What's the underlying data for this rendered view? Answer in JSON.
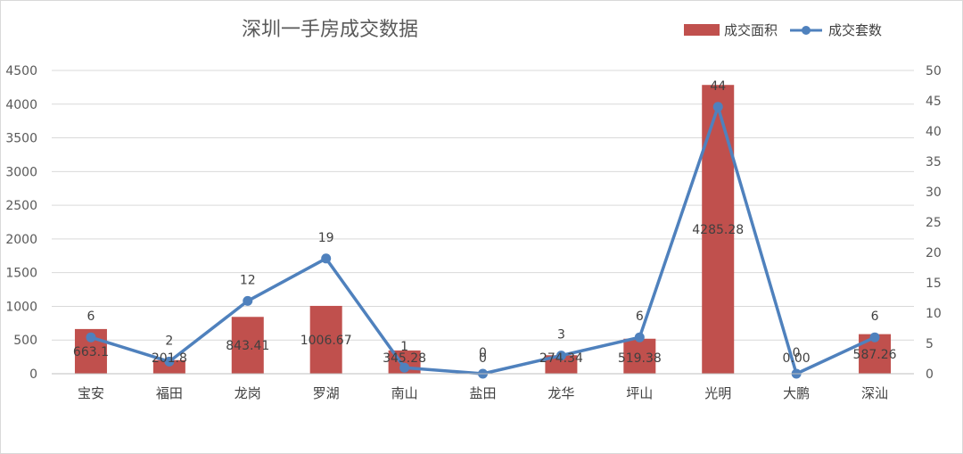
{
  "chart_data": {
    "type": "bar",
    "title": "深圳一手房成交数据",
    "categories": [
      "宝安",
      "福田",
      "龙岗",
      "罗湖",
      "南山",
      "盐田",
      "龙华",
      "坪山",
      "光明",
      "大鹏",
      "深汕"
    ],
    "series": [
      {
        "name": "成交面积",
        "type": "bar",
        "axis": "left",
        "color": "#c0504d",
        "values": [
          663.1,
          201.8,
          843.41,
          1006.67,
          345.28,
          0,
          274.34,
          519.38,
          4285.28,
          0,
          587.26
        ],
        "labels": [
          "663.1",
          "201.8",
          "843.41",
          "1006.67",
          "345.28",
          "0",
          "274.34",
          "519.38",
          "4285.28",
          "0.00",
          "587.26"
        ]
      },
      {
        "name": "成交套数",
        "type": "line",
        "axis": "right",
        "color": "#4f81bd",
        "values": [
          6,
          2,
          12,
          19,
          1,
          0,
          3,
          6,
          44,
          0,
          6
        ],
        "labels": [
          "6",
          "2",
          "12",
          "19",
          "1",
          "0",
          "3",
          "6",
          "44",
          "0",
          "6"
        ]
      }
    ],
    "y_left": {
      "min": 0,
      "max": 4500,
      "step": 500,
      "ticks": [
        "0",
        "500",
        "1000",
        "1500",
        "2000",
        "2500",
        "3000",
        "3500",
        "4000",
        "4500"
      ]
    },
    "y_right": {
      "min": 0,
      "max": 50,
      "step": 5,
      "ticks": [
        "0",
        "5",
        "10",
        "15",
        "20",
        "25",
        "30",
        "35",
        "40",
        "45",
        "50"
      ]
    },
    "grid": true,
    "legend": "top-right"
  }
}
